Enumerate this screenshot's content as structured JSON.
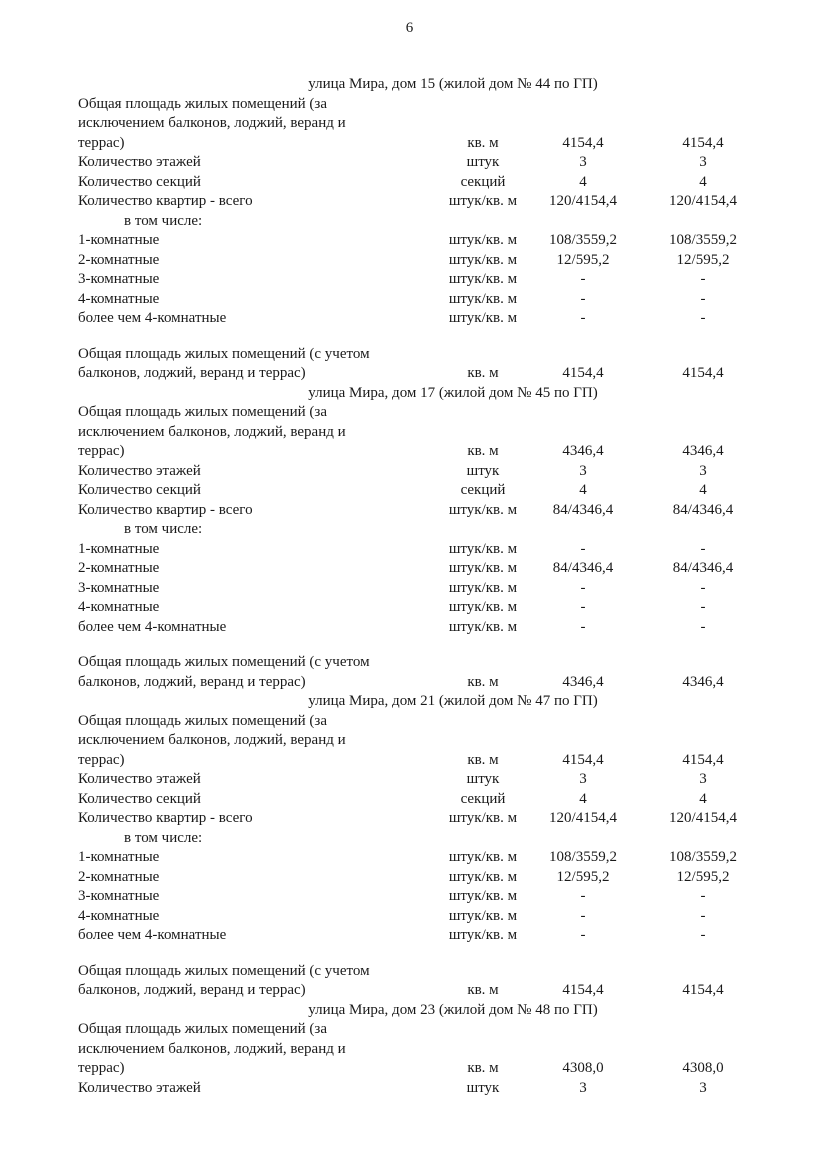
{
  "page_number": "6",
  "sections": [
    {
      "title": "улица Мира, дом 15 (жилой дом № 44 по ГП)",
      "rows": [
        {
          "label": [
            "Общая площадь жилых помещений (за",
            "исключением балконов, лоджий, веранд и",
            "террас)"
          ],
          "unit": "кв. м",
          "v1": "4154,4",
          "v2": "4154,4"
        },
        {
          "label": [
            "Количество этажей"
          ],
          "unit": "штук",
          "v1": "3",
          "v2": "3"
        },
        {
          "label": [
            "Количество секций"
          ],
          "unit": "секций",
          "v1": "4",
          "v2": "4"
        },
        {
          "label": [
            "Количество квартир - всего"
          ],
          "unit": "штук/кв. м",
          "v1": "120/4154,4",
          "v2": "120/4154,4"
        },
        {
          "label": [
            "в том числе:"
          ],
          "indent": true,
          "unit": "",
          "v1": "",
          "v2": ""
        },
        {
          "label": [
            "1-комнатные"
          ],
          "unit": "штук/кв. м",
          "v1": "108/3559,2",
          "v2": "108/3559,2"
        },
        {
          "label": [
            "2-комнатные"
          ],
          "unit": "штук/кв. м",
          "v1": "12/595,2",
          "v2": "12/595,2"
        },
        {
          "label": [
            "3-комнатные"
          ],
          "unit": "штук/кв. м",
          "v1": "-",
          "v2": "-"
        },
        {
          "label": [
            "4-комнатные"
          ],
          "unit": "штук/кв. м",
          "v1": "-",
          "v2": "-"
        },
        {
          "label": [
            "более чем 4-комнатные"
          ],
          "unit": "штук/кв. м",
          "v1": "-",
          "v2": "-"
        },
        {
          "blank": true
        },
        {
          "label": [
            "Общая площадь жилых помещений (с учетом",
            "балконов, лоджий, веранд и террас)"
          ],
          "unit": "кв. м",
          "v1": "4154,4",
          "v2": "4154,4"
        }
      ]
    },
    {
      "title": "улица Мира, дом 17 (жилой дом № 45 по ГП)",
      "rows": [
        {
          "label": [
            "Общая площадь жилых помещений (за",
            "исключением балконов, лоджий, веранд и",
            "террас)"
          ],
          "unit": "кв. м",
          "v1": "4346,4",
          "v2": "4346,4"
        },
        {
          "label": [
            "Количество этажей"
          ],
          "unit": "штук",
          "v1": "3",
          "v2": "3"
        },
        {
          "label": [
            "Количество секций"
          ],
          "unit": "секций",
          "v1": "4",
          "v2": "4"
        },
        {
          "label": [
            "Количество квартир - всего"
          ],
          "unit": "штук/кв. м",
          "v1": "84/4346,4",
          "v2": "84/4346,4"
        },
        {
          "label": [
            "в том числе:"
          ],
          "indent": true,
          "unit": "",
          "v1": "",
          "v2": ""
        },
        {
          "label": [
            "1-комнатные"
          ],
          "unit": "штук/кв. м",
          "v1": "-",
          "v2": "-"
        },
        {
          "label": [
            "2-комнатные"
          ],
          "unit": "штук/кв. м",
          "v1": "84/4346,4",
          "v2": "84/4346,4"
        },
        {
          "label": [
            "3-комнатные"
          ],
          "unit": "штук/кв. м",
          "v1": "-",
          "v2": "-"
        },
        {
          "label": [
            "4-комнатные"
          ],
          "unit": "штук/кв. м",
          "v1": "-",
          "v2": "-"
        },
        {
          "label": [
            "более чем 4-комнатные"
          ],
          "unit": "штук/кв. м",
          "v1": "-",
          "v2": "-"
        },
        {
          "blank": true
        },
        {
          "label": [
            "Общая площадь жилых помещений (с учетом",
            "балконов, лоджий, веранд и террас)"
          ],
          "unit": "кв. м",
          "v1": "4346,4",
          "v2": "4346,4"
        }
      ]
    },
    {
      "title": "улица Мира, дом 21 (жилой дом № 47 по ГП)",
      "rows": [
        {
          "label": [
            "Общая площадь жилых помещений (за",
            "исключением балконов, лоджий, веранд и",
            "террас)"
          ],
          "unit": "кв. м",
          "v1": "4154,4",
          "v2": "4154,4"
        },
        {
          "label": [
            "Количество этажей"
          ],
          "unit": "штук",
          "v1": "3",
          "v2": "3"
        },
        {
          "label": [
            "Количество секций"
          ],
          "unit": "секций",
          "v1": "4",
          "v2": "4"
        },
        {
          "label": [
            "Количество квартир - всего"
          ],
          "unit": "штук/кв. м",
          "v1": "120/4154,4",
          "v2": "120/4154,4"
        },
        {
          "label": [
            "в том числе:"
          ],
          "indent": true,
          "unit": "",
          "v1": "",
          "v2": ""
        },
        {
          "label": [
            "1-комнатные"
          ],
          "unit": "штук/кв. м",
          "v1": "108/3559,2",
          "v2": "108/3559,2"
        },
        {
          "label": [
            "2-комнатные"
          ],
          "unit": "штук/кв. м",
          "v1": "12/595,2",
          "v2": "12/595,2"
        },
        {
          "label": [
            "3-комнатные"
          ],
          "unit": "штук/кв. м",
          "v1": "-",
          "v2": "-"
        },
        {
          "label": [
            "4-комнатные"
          ],
          "unit": "штук/кв. м",
          "v1": "-",
          "v2": "-"
        },
        {
          "label": [
            "более чем 4-комнатные"
          ],
          "unit": "штук/кв. м",
          "v1": "-",
          "v2": "-"
        },
        {
          "blank": true
        },
        {
          "label": [
            "Общая площадь жилых помещений (с учетом",
            "балконов, лоджий, веранд и террас)"
          ],
          "unit": "кв. м",
          "v1": "4154,4",
          "v2": "4154,4"
        }
      ]
    },
    {
      "title": "улица Мира, дом 23 (жилой дом № 48 по ГП)",
      "rows": [
        {
          "label": [
            "Общая площадь жилых помещений (за",
            "исключением балконов, лоджий, веранд и",
            "террас)"
          ],
          "unit": "кв. м",
          "v1": "4308,0",
          "v2": "4308,0"
        },
        {
          "label": [
            "Количество этажей"
          ],
          "unit": "штук",
          "v1": "3",
          "v2": "3"
        }
      ]
    }
  ]
}
